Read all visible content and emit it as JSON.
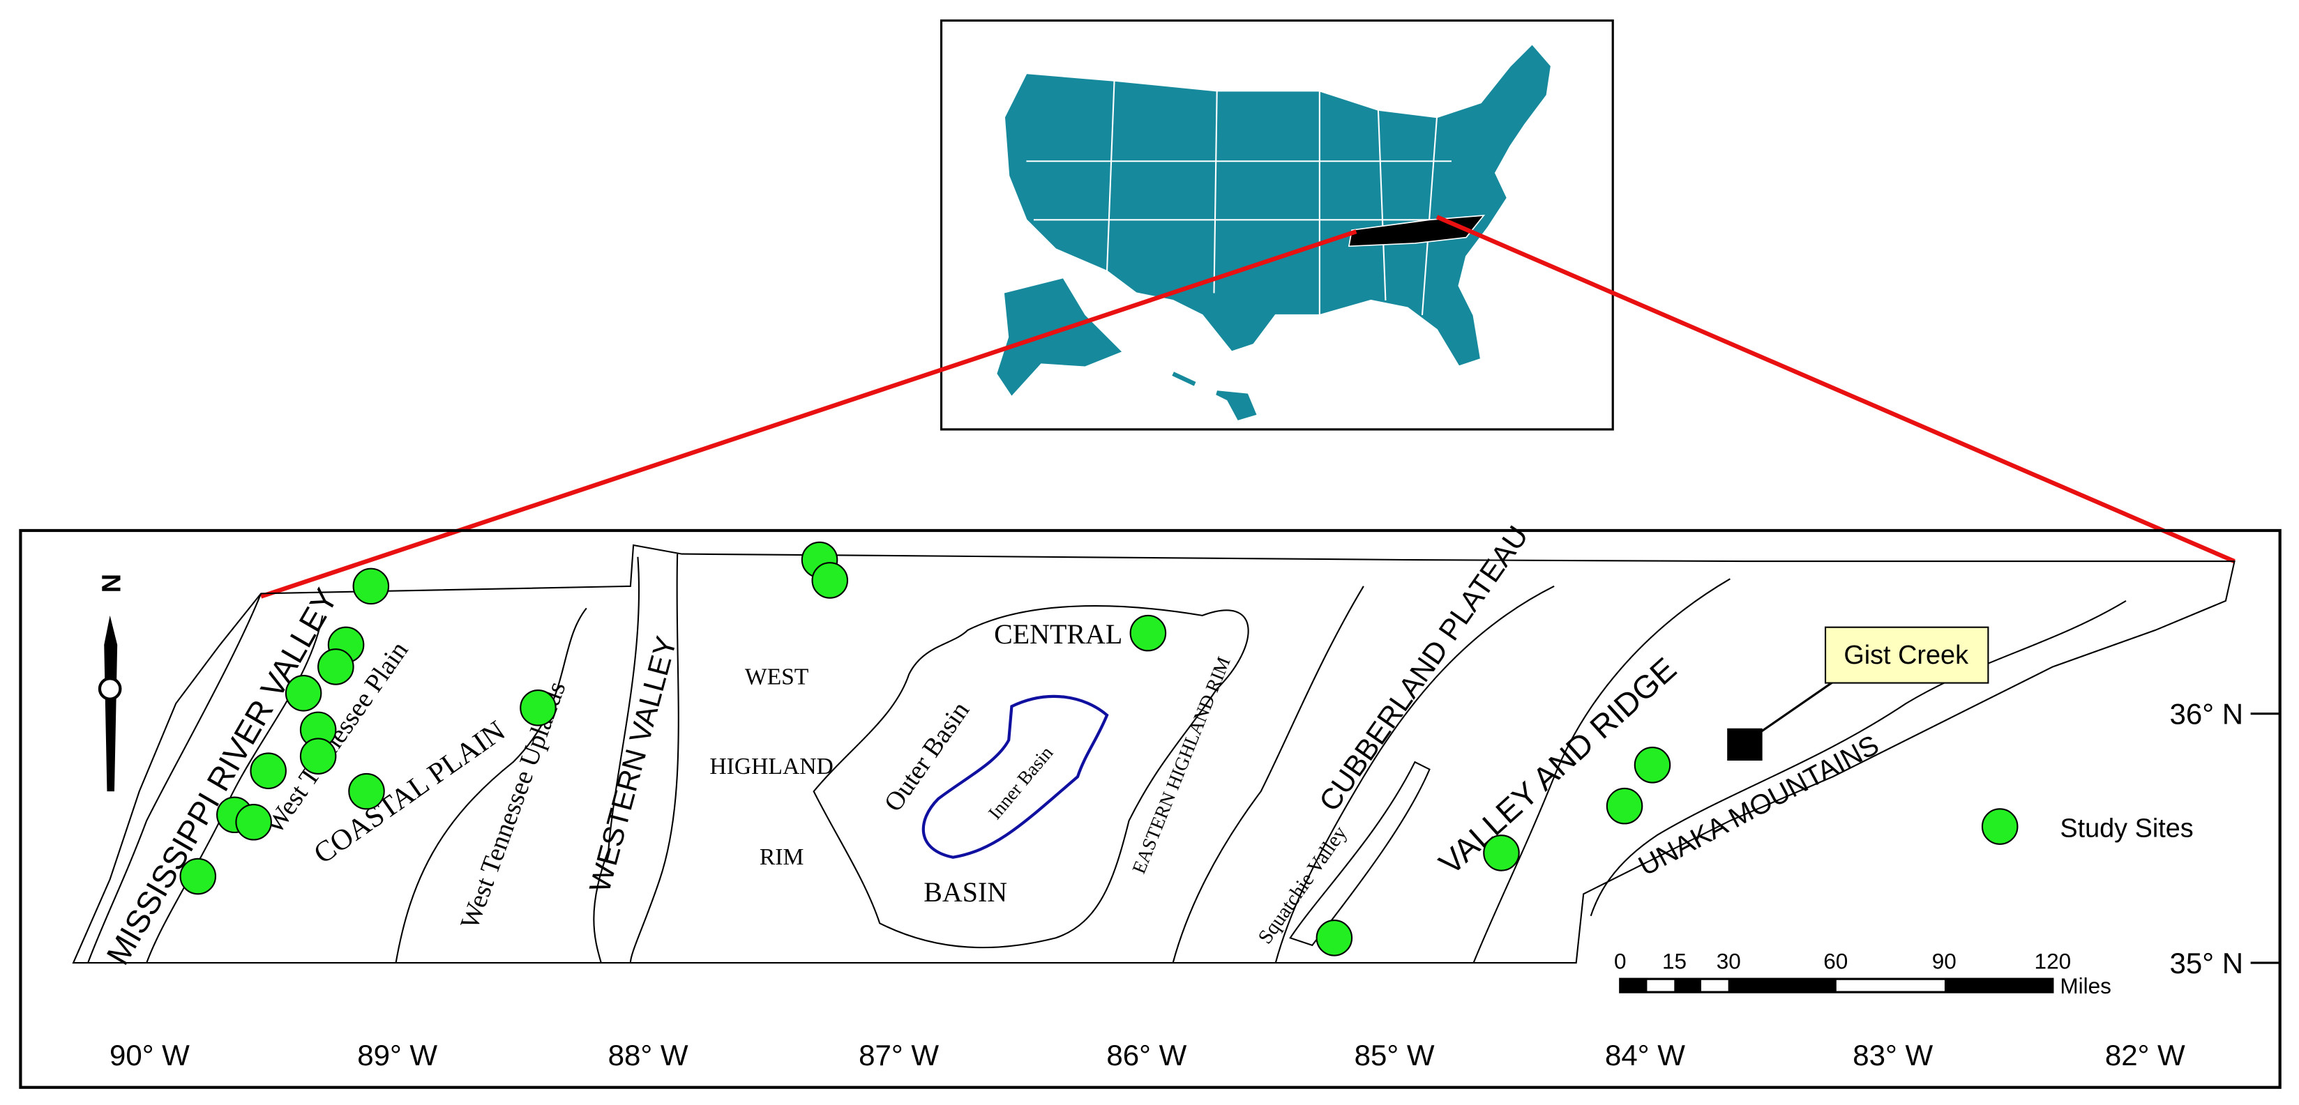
{
  "map": {
    "regions": [
      "MISSISSIPPI RIVER VALLEY",
      "West Tennessee Plain",
      "COASTAL PLAIN",
      "West Tennessee Uplands",
      "WESTERN VALLEY",
      "WEST",
      "HIGHLAND",
      "RIM",
      "CENTRAL",
      "Outer Basin",
      "Inner Basin",
      "BASIN",
      "EASTERN HIGHLAND RIM",
      "CUBBERLAND PLATEAU",
      "Squatchie Valley",
      "VALLEY AND RIDGE",
      "UNAKA MOUNTAINS"
    ],
    "north": "N",
    "callout": "Gist Creek",
    "legend": "Study Sites",
    "scale": {
      "labels": [
        "0",
        "15",
        "30",
        "60",
        "90",
        "120"
      ],
      "unit": "Miles"
    },
    "longitudes": [
      "90° W",
      "89° W",
      "88° W",
      "87° W",
      "86° W",
      "85° W",
      "84° W",
      "83° W",
      "82° W"
    ],
    "latitudes": [
      "36° N",
      "35° N"
    ]
  }
}
